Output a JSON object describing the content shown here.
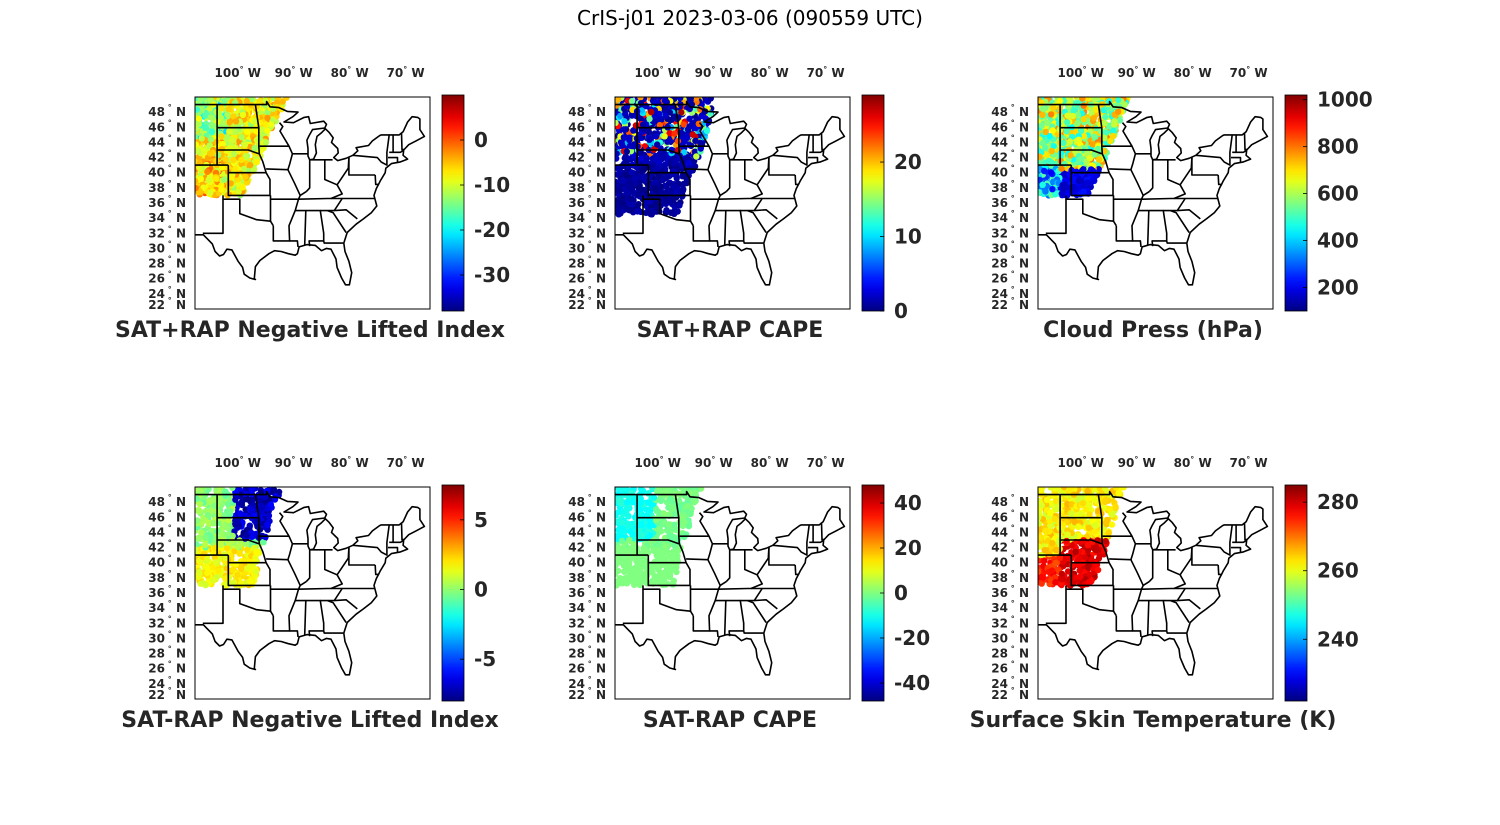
{
  "figure_title": "CrIS-j01 2023-03-06 (090559 UTC)",
  "colormap": "jet",
  "lon_ticks": [
    "100",
    "90",
    "80",
    "70"
  ],
  "lon_hemi": "W",
  "lat_ticks": [
    "48",
    "46",
    "44",
    "42",
    "40",
    "38",
    "36",
    "34",
    "32",
    "30",
    "28",
    "26",
    "24",
    "22"
  ],
  "lat_hemi": "N",
  "degree_symbol": "°",
  "chart_data": [
    {
      "type": "scatter",
      "title": "SAT+RAP Negative Lifted Index",
      "xlabel": "",
      "ylabel": "",
      "xlim": [
        -108,
        -66
      ],
      "ylim": [
        22,
        50
      ],
      "clim": [
        -38,
        10
      ],
      "colorbar_ticks": [
        "0",
        "-10",
        "-20",
        "-30"
      ],
      "colorbar_tick_values": [
        0,
        -10,
        -20,
        -30
      ],
      "swath": {
        "coverage": "northern plains to Minnesota, 37-50 N, 108-92 W",
        "typical_value": -8,
        "range": [
          -25,
          3
        ]
      }
    },
    {
      "type": "scatter",
      "title": "SAT+RAP CAPE",
      "xlabel": "",
      "ylabel": "",
      "xlim": [
        -108,
        -66
      ],
      "ylim": [
        22,
        50
      ],
      "clim": [
        0,
        29
      ],
      "colorbar_ticks": [
        "20",
        "10",
        "0"
      ],
      "colorbar_tick_values": [
        20,
        10,
        0
      ],
      "swath": {
        "coverage": "plains swath, 34-50 N, 108-90 W",
        "typical_value": 0,
        "range": [
          0,
          28
        ]
      }
    },
    {
      "type": "scatter",
      "title": "Cloud Press (hPa)",
      "xlabel": "",
      "ylabel": "",
      "xlim": [
        -108,
        -66
      ],
      "ylim": [
        22,
        50
      ],
      "clim": [
        100,
        1020
      ],
      "colorbar_ticks": [
        "1000",
        "800",
        "600",
        "400",
        "200"
      ],
      "colorbar_tick_values": [
        1000,
        800,
        600,
        400,
        200
      ],
      "swath": {
        "coverage": "northern plains, 37-50 N, 108-92 W",
        "typical_value": 650,
        "range": [
          120,
          900
        ]
      }
    },
    {
      "type": "scatter",
      "title": "SAT-RAP Negative Lifted Index",
      "xlabel": "",
      "ylabel": "",
      "xlim": [
        -108,
        -66
      ],
      "ylim": [
        22,
        50
      ],
      "clim": [
        -8,
        7.5
      ],
      "colorbar_ticks": [
        "5",
        "0",
        "-5"
      ],
      "colorbar_tick_values": [
        5,
        0,
        -5
      ],
      "swath": {
        "coverage": "northern plains, 37-50 N, 108-92 W",
        "typical_value": 0.5,
        "range": [
          -8,
          3
        ]
      }
    },
    {
      "type": "scatter",
      "title": "SAT-RAP CAPE",
      "xlabel": "",
      "ylabel": "",
      "xlim": [
        -108,
        -66
      ],
      "ylim": [
        22,
        50
      ],
      "clim": [
        -48,
        48
      ],
      "colorbar_ticks": [
        "40",
        "20",
        "0",
        "-20",
        "-40"
      ],
      "colorbar_tick_values": [
        40,
        20,
        0,
        -20,
        -40
      ],
      "swath": {
        "coverage": "northern plains, 37-50 N, 108-92 W",
        "typical_value": 0,
        "range": [
          -12,
          5
        ]
      }
    },
    {
      "type": "scatter",
      "title": "Surface Skin Temperature (K)",
      "xlabel": "",
      "ylabel": "",
      "xlim": [
        -108,
        -66
      ],
      "ylim": [
        22,
        50
      ],
      "clim": [
        222,
        285
      ],
      "colorbar_ticks": [
        "280",
        "260",
        "240"
      ],
      "colorbar_tick_values": [
        280,
        260,
        240
      ],
      "swath": {
        "coverage": "northern plains, 37-50 N, 108-92 W",
        "typical_value": 265,
        "range": [
          255,
          282
        ]
      }
    }
  ]
}
